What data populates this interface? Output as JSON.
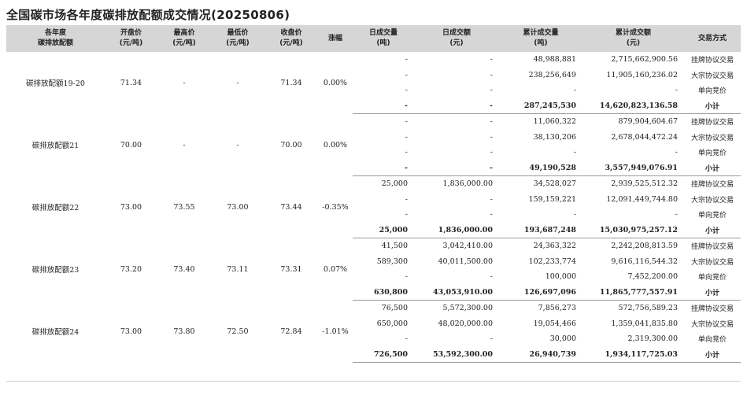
{
  "title": "全国碳市场各年度碳排放配额成交情况(20250806)",
  "headers": [
    {
      "l1": "各年度",
      "l2": "碳排放配额"
    },
    {
      "l1": "开盘价",
      "l2": "(元/吨)"
    },
    {
      "l1": "最高价",
      "l2": "(元/吨)"
    },
    {
      "l1": "最低价",
      "l2": "(元/吨)"
    },
    {
      "l1": "收盘价",
      "l2": "(元/吨)"
    },
    {
      "l1": "涨幅",
      "l2": ""
    },
    {
      "l1": "日成交量",
      "l2": "(吨)"
    },
    {
      "l1": "日成交额",
      "l2": "(元)"
    },
    {
      "l1": "累计成交量",
      "l2": "(吨)"
    },
    {
      "l1": "累计成交额",
      "l2": "(元)"
    },
    {
      "l1": "交易方式",
      "l2": ""
    }
  ],
  "groups": [
    {
      "name": "碳排放配额19-20",
      "open": "71.34",
      "high": "-",
      "low": "-",
      "close": "71.34",
      "change": "0.00%",
      "rows": [
        {
          "dvol": "-",
          "damt": "-",
          "cvol": "48,988,881",
          "camt": "2,715,662,900.56",
          "type": "挂牌协议交易"
        },
        {
          "dvol": "-",
          "damt": "-",
          "cvol": "238,256,649",
          "camt": "11,905,160,236.02",
          "type": "大宗协议交易"
        },
        {
          "dvol": "-",
          "damt": "-",
          "cvol": "-",
          "camt": "-",
          "type": "单向竞价"
        },
        {
          "dvol": "-",
          "damt": "-",
          "cvol": "287,245,530",
          "camt": "14,620,823,136.58",
          "type": "小计"
        }
      ]
    },
    {
      "name": "碳排放配额21",
      "open": "70.00",
      "high": "-",
      "low": "-",
      "close": "70.00",
      "change": "0.00%",
      "rows": [
        {
          "dvol": "-",
          "damt": "-",
          "cvol": "11,060,322",
          "camt": "879,904,604.67",
          "type": "挂牌协议交易"
        },
        {
          "dvol": "-",
          "damt": "-",
          "cvol": "38,130,206",
          "camt": "2,678,044,472.24",
          "type": "大宗协议交易"
        },
        {
          "dvol": "-",
          "damt": "-",
          "cvol": "-",
          "camt": "-",
          "type": "单向竞价"
        },
        {
          "dvol": "-",
          "damt": "-",
          "cvol": "49,190,528",
          "camt": "3,557,949,076.91",
          "type": "小计"
        }
      ]
    },
    {
      "name": "碳排放配额22",
      "open": "73.00",
      "high": "73.55",
      "low": "73.00",
      "close": "73.44",
      "change": "-0.35%",
      "rows": [
        {
          "dvol": "25,000",
          "damt": "1,836,000.00",
          "cvol": "34,528,027",
          "camt": "2,939,525,512.32",
          "type": "挂牌协议交易"
        },
        {
          "dvol": "-",
          "damt": "-",
          "cvol": "159,159,221",
          "camt": "12,091,449,744.80",
          "type": "大宗协议交易"
        },
        {
          "dvol": "-",
          "damt": "-",
          "cvol": "-",
          "camt": "-",
          "type": "单向竞价"
        },
        {
          "dvol": "25,000",
          "damt": "1,836,000.00",
          "cvol": "193,687,248",
          "camt": "15,030,975,257.12",
          "type": "小计"
        }
      ]
    },
    {
      "name": "碳排放配额23",
      "open": "73.20",
      "high": "73.40",
      "low": "73.11",
      "close": "73.31",
      "change": "0.07%",
      "rows": [
        {
          "dvol": "41,500",
          "damt": "3,042,410.00",
          "cvol": "24,363,322",
          "camt": "2,242,208,813.59",
          "type": "挂牌协议交易"
        },
        {
          "dvol": "589,300",
          "damt": "40,011,500.00",
          "cvol": "102,233,774",
          "camt": "9,616,116,544.32",
          "type": "大宗协议交易"
        },
        {
          "dvol": "-",
          "damt": "-",
          "cvol": "100,000",
          "camt": "7,452,200.00",
          "type": "单向竞价"
        },
        {
          "dvol": "630,800",
          "damt": "43,053,910.00",
          "cvol": "126,697,096",
          "camt": "11,865,777,557.91",
          "type": "小计"
        }
      ]
    },
    {
      "name": "碳排放配额24",
      "open": "73.00",
      "high": "73.80",
      "low": "72.50",
      "close": "72.84",
      "change": "-1.01%",
      "rows": [
        {
          "dvol": "76,500",
          "damt": "5,572,300.00",
          "cvol": "7,856,273",
          "camt": "572,756,589.23",
          "type": "挂牌协议交易"
        },
        {
          "dvol": "650,000",
          "damt": "48,020,000.00",
          "cvol": "19,054,466",
          "camt": "1,359,041,835.80",
          "type": "大宗协议交易"
        },
        {
          "dvol": "-",
          "damt": "-",
          "cvol": "30,000",
          "camt": "2,319,300.00",
          "type": "单向竞价"
        },
        {
          "dvol": "726,500",
          "damt": "53,592,300.00",
          "cvol": "26,940,739",
          "camt": "1,934,117,725.03",
          "type": "小计"
        }
      ]
    }
  ]
}
